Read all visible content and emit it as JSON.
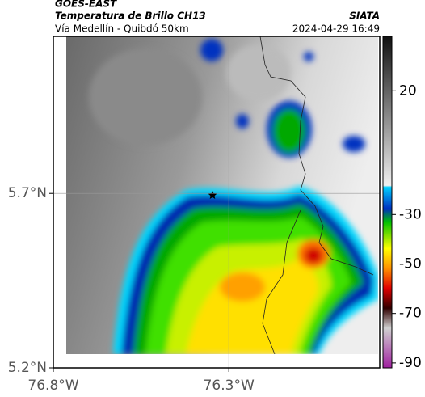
{
  "header": {
    "source": "GOES-EAST",
    "product": "Temperatura de Brillo CH13",
    "region": "Vía Medellín - Quibdó 50km",
    "agency": "SIATA",
    "timestamp": "2024-04-29 16:49"
  },
  "map": {
    "xlim": [
      -76.8,
      -75.87
    ],
    "xticks": [
      {
        "value": -76.8,
        "label": "76.8°W"
      },
      {
        "value": -76.3,
        "label": "76.3°W"
      }
    ],
    "ylim": [
      5.2,
      6.15
    ],
    "yticks": [
      {
        "value": 5.2,
        "label": "5.2°N"
      },
      {
        "value": 5.7,
        "label": "5.7°N"
      }
    ]
  },
  "colorbar": {
    "clim": [
      42,
      -92
    ],
    "ticks": [
      20,
      -30,
      -50,
      -70,
      -90
    ]
  }
}
